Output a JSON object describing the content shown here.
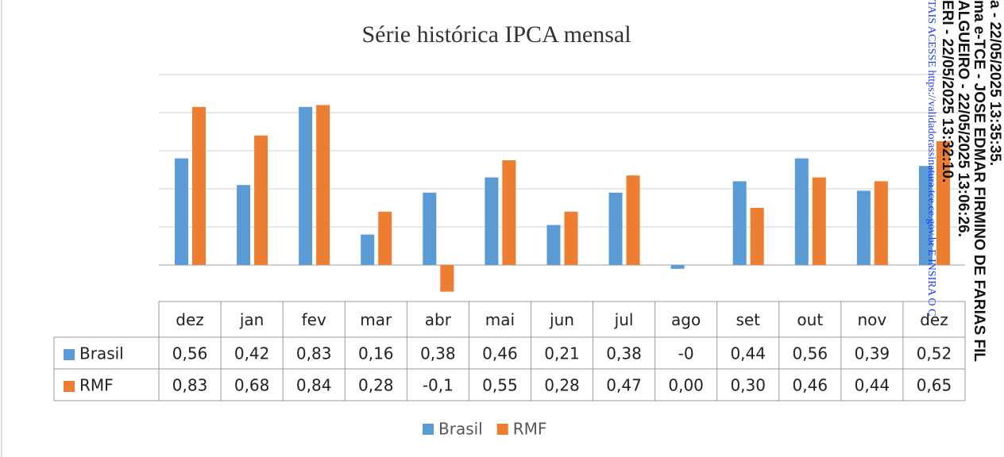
{
  "chart_data": {
    "type": "bar",
    "title": "Série histórica IPCA mensal",
    "categories": [
      "dez",
      "jan",
      "fev",
      "mar",
      "abr",
      "mai",
      "jun",
      "jul",
      "ago",
      "set",
      "out",
      "nov",
      "dez"
    ],
    "series": [
      {
        "name": "Brasil",
        "color": "#5b9bd5",
        "values": [
          0.56,
          0.42,
          0.83,
          0.16,
          0.38,
          0.46,
          0.21,
          0.38,
          -0.02,
          0.44,
          0.56,
          0.39,
          0.52
        ],
        "value_labels": [
          "0,56",
          "0,42",
          "0,83",
          "0,16",
          "0,38",
          "0,46",
          "0,21",
          "0,38",
          "-0",
          "0,44",
          "0,56",
          "0,39",
          "0,52"
        ]
      },
      {
        "name": "RMF",
        "color": "#ed7d31",
        "values": [
          0.83,
          0.68,
          0.84,
          0.28,
          -0.14,
          0.55,
          0.28,
          0.47,
          0,
          0.3,
          0.46,
          0.44,
          0.65
        ],
        "value_labels": [
          "0,83",
          "0,68",
          "0,84",
          "0,28",
          "-0,1",
          "0,55",
          "0,28",
          "0,47",
          "0,00",
          "0,30",
          "0,46",
          "0,44",
          "0,65"
        ]
      }
    ],
    "ylim": [
      -0.2,
      1.0
    ],
    "yticks": [
      0,
      0.2,
      0.4,
      0.6,
      0.8,
      1.0
    ],
    "grid": true,
    "legend": "bottom"
  },
  "watermark": [
    "a - 22/05/2025 13:35:35.",
    "ma e-TCE - JOSE EDMAR FIRMINO DE FARIAS FIL",
    "ALGUEIRO - 22/05/2025 13:06:26.",
    "ERI - 22/05/2025 13:32:10."
  ],
  "watermark_link": "TAIS ACESSE https://validadorassinatura.tce.ce.gov.br E INSIRA O C"
}
